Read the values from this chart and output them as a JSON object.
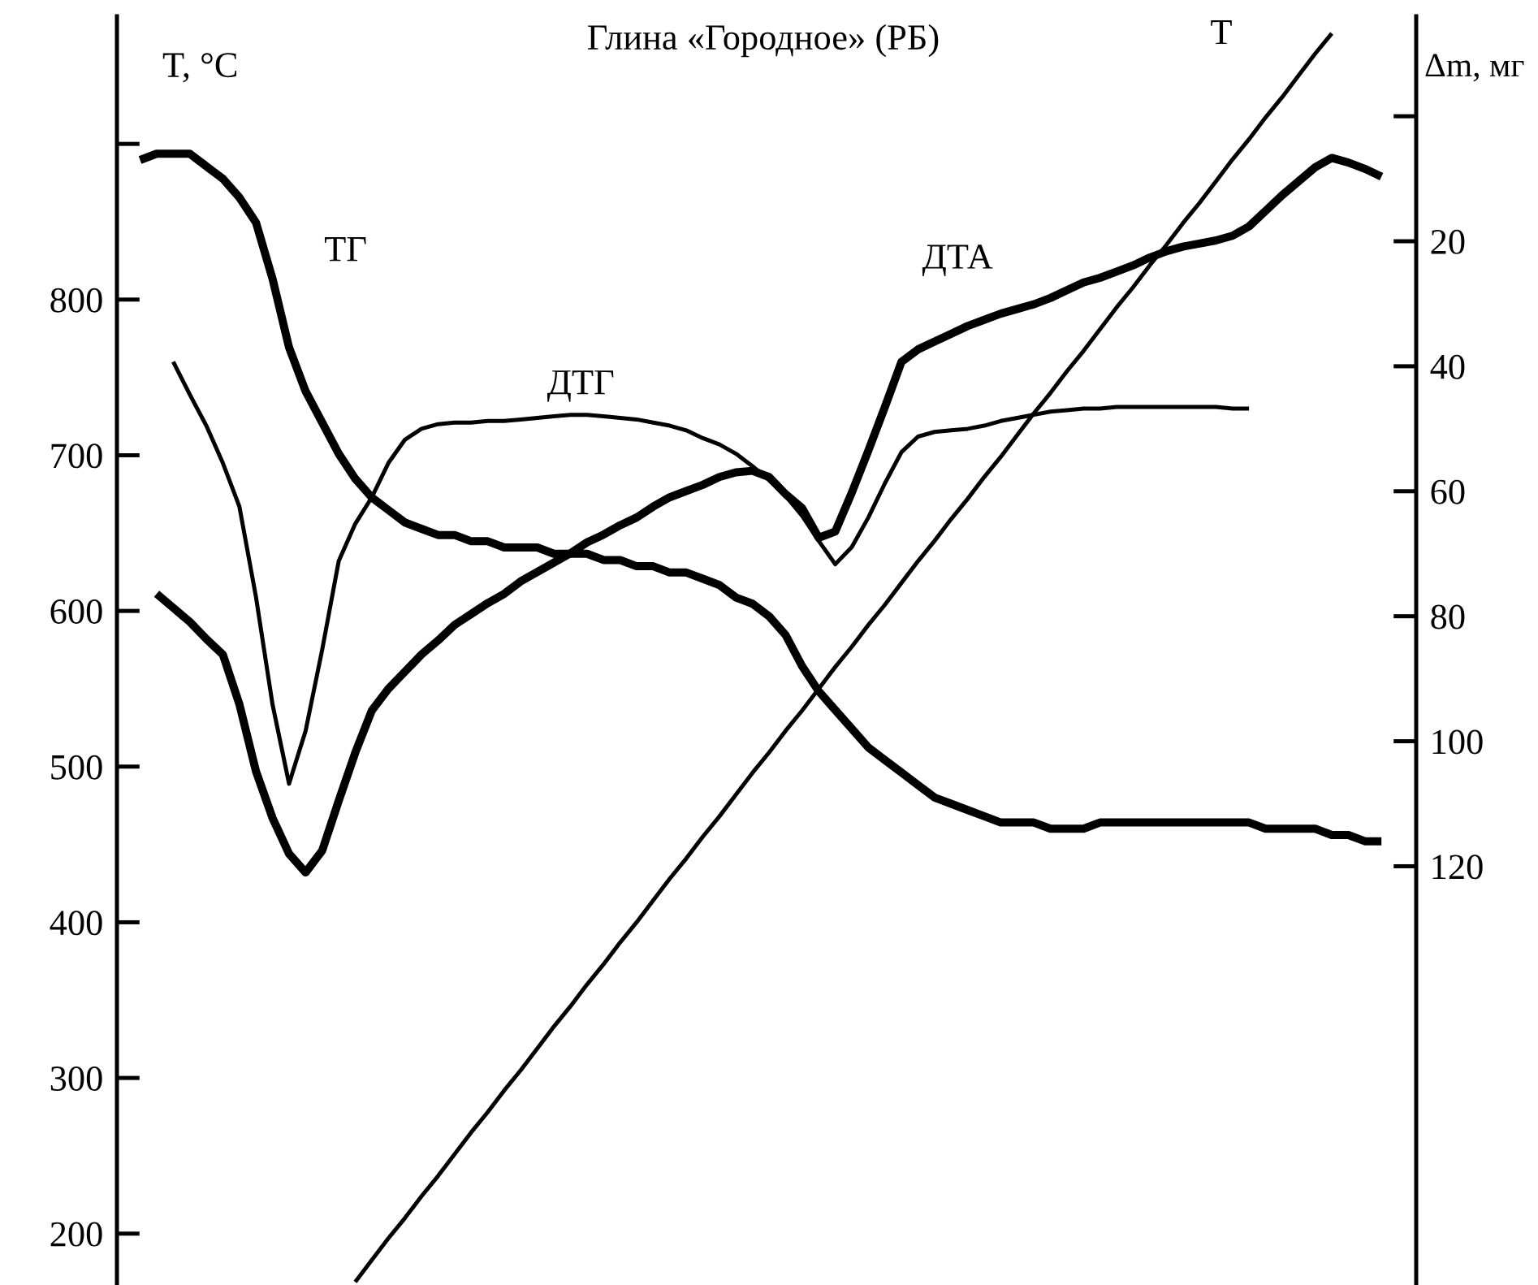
{
  "chart_data": {
    "type": "line",
    "title": "Глина «Городное» (РБ)",
    "ylabel": "T, °C",
    "y2label": "Δm, мг",
    "categories": [
      null,
      null,
      null,
      null,
      null,
      null,
      null,
      null,
      null,
      null,
      null,
      null,
      null,
      null,
      null,
      null,
      null,
      null,
      null,
      null,
      null,
      null,
      null,
      null,
      null,
      null,
      null,
      null,
      null,
      null,
      null,
      null,
      null,
      null,
      null,
      null,
      null,
      null,
      null,
      null,
      null,
      null,
      null,
      null,
      null,
      null,
      null,
      null,
      null,
      null,
      null,
      null,
      null,
      null,
      null,
      null,
      null,
      null,
      null,
      null,
      null,
      null,
      null,
      null,
      null,
      null,
      null,
      null,
      null,
      null,
      null,
      null,
      null,
      null,
      null,
      null,
      null
    ],
    "series": [
      {
        "name": "ТГ",
        "color": "#000000",
        "axis": "y2",
        "values": [
          7,
          6,
          6,
          6,
          8,
          10,
          13,
          17,
          26,
          37,
          44,
          49,
          54,
          58,
          61,
          63,
          65,
          66,
          67,
          67,
          68,
          68,
          69,
          69,
          69,
          70,
          70,
          70,
          71,
          71,
          72,
          72,
          73,
          73,
          74,
          75,
          77,
          78,
          80,
          83,
          88,
          92,
          95,
          98,
          101,
          103,
          105,
          107,
          109,
          110,
          111,
          112,
          113,
          113,
          113,
          114,
          114,
          114,
          113,
          113,
          113,
          113,
          113,
          113,
          113,
          113,
          113,
          113,
          114,
          114,
          114,
          114,
          115,
          115,
          116,
          116,
          null
        ]
      },
      {
        "name": "ДТГ",
        "color": "#000000",
        "values": [
          null,
          null,
          760,
          739,
          719,
          695,
          667,
          609,
          540,
          489,
          523,
          575,
          632,
          656,
          673,
          695,
          710,
          717,
          720,
          721,
          721,
          722,
          722,
          723,
          724,
          725,
          726,
          726,
          725,
          724,
          723,
          721,
          719,
          716,
          711,
          707,
          701,
          693,
          684,
          674,
          661,
          645,
          630,
          641,
          660,
          682,
          702,
          712,
          715,
          716,
          717,
          719,
          722,
          724,
          726,
          728,
          729,
          730,
          730,
          731,
          731,
          731,
          731,
          731,
          731,
          731,
          730,
          730,
          null,
          null,
          null,
          null,
          null,
          null,
          null,
          null,
          null
        ]
      },
      {
        "name": "ДТА",
        "color": "#000000",
        "values": [
          null,
          611,
          602,
          593,
          582,
          572,
          540,
          497,
          467,
          444,
          432,
          446,
          478,
          509,
          536,
          550,
          561,
          572,
          581,
          591,
          598,
          605,
          611,
          619,
          625,
          631,
          637,
          644,
          649,
          655,
          660,
          667,
          673,
          677,
          681,
          686,
          689,
          690,
          686,
          675,
          666,
          647,
          651,
          676,
          703,
          731,
          760,
          768,
          773,
          778,
          783,
          787,
          791,
          794,
          797,
          801,
          806,
          811,
          814,
          818,
          822,
          827,
          831,
          834,
          836,
          838,
          841,
          847,
          857,
          867,
          876,
          885,
          891,
          888,
          884,
          879,
          null
        ]
      },
      {
        "name": "Т",
        "color": "#000000",
        "values": [
          null,
          null,
          null,
          null,
          null,
          null,
          null,
          null,
          null,
          null,
          null,
          null,
          null,
          169,
          183,
          197,
          210,
          224,
          237,
          251,
          265,
          278,
          292,
          305,
          319,
          333,
          346,
          360,
          373,
          387,
          400,
          414,
          428,
          441,
          455,
          468,
          482,
          496,
          509,
          523,
          536,
          550,
          564,
          577,
          591,
          604,
          618,
          632,
          645,
          659,
          672,
          686,
          699,
          713,
          727,
          740,
          754,
          767,
          781,
          795,
          808,
          822,
          835,
          849,
          862,
          876,
          890,
          903,
          917,
          930,
          944,
          958,
          971,
          null,
          null,
          null,
          null
        ]
      }
    ],
    "ylim": [
      167,
      982
    ],
    "yticks": [
      200,
      300,
      400,
      500,
      600,
      700,
      800,
      {
        "value": 900,
        "label": null
      }
    ],
    "y2lim": [
      187,
      -16
    ],
    "y2ticks": [
      {
        "value": 0,
        "label": null
      },
      20,
      40,
      60,
      80,
      100,
      120
    ],
    "tick_labels": "y"
  }
}
